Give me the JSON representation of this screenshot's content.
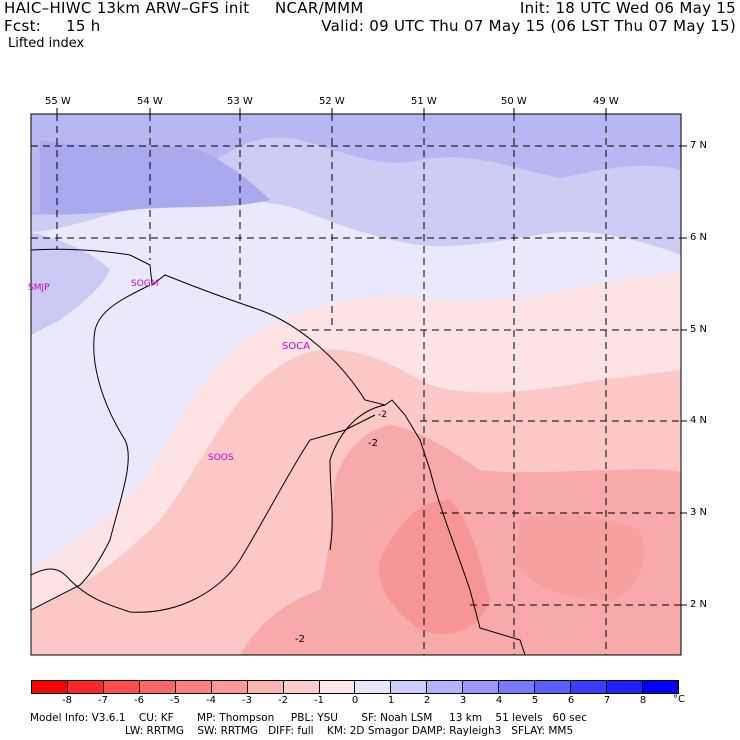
{
  "header": {
    "model": "HAIC–HIWC 13km ARW–GFS init",
    "org": "NCAR/MMM",
    "fcst_label": "Fcst:",
    "fcst_value": "15 h",
    "init": "Init: 18 UTC Wed 06 May 15",
    "valid": "Valid: 09 UTC Thu 07 May 15 (06 LST Thu 07 May 15)",
    "field": "Lifted index"
  },
  "map": {
    "lon_labels": [
      "55 W",
      "54 W",
      "53 W",
      "52 W",
      "51 W",
      "50 W",
      "49 W"
    ],
    "lat_labels": [
      "7 N",
      "6 N",
      "5 N",
      "4 N",
      "3 N",
      "2 N"
    ],
    "stations": [
      "SMJP",
      "SOGM",
      "SOCA",
      "SOOS"
    ],
    "contour_labels": [
      "-2",
      "-2",
      "-2"
    ]
  },
  "colorbar": {
    "ticks": [
      "-8",
      "-7",
      "-6",
      "-5",
      "-4",
      "-3",
      "-2",
      "-1",
      "0",
      "1",
      "2",
      "3",
      "4",
      "5",
      "6",
      "7",
      "8"
    ],
    "unit": "°C",
    "colors": [
      "#ff0000",
      "#ff2626",
      "#ff4c4c",
      "#ff6666",
      "#ff8080",
      "#ff9999",
      "#ffb3b3",
      "#ffcccc",
      "#ffe6e6",
      "#e6e6ff",
      "#ccccff",
      "#b3b3ff",
      "#9999ff",
      "#7a7aff",
      "#5c5cff",
      "#3d3dff",
      "#1f1fff",
      "#0000ff"
    ]
  },
  "footer": {
    "line1": "Model Info: V3.6.1    CU: KF       MP: Thompson     PBL: YSU       SF: Noah LSM     13 km    51 levels   60 sec",
    "line2": "LW: RRTMG    SW: RRTMG   DIFF: full    KM: 2D Smagor DAMP: Rayleigh3   SFLAY: MM5"
  }
}
